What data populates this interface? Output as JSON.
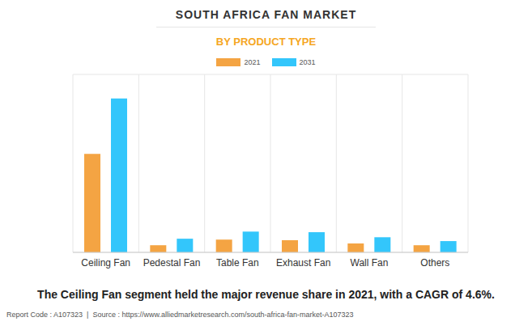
{
  "chart_data": {
    "type": "bar",
    "title": "SOUTH AFRICA FAN MARKET",
    "subtitle": "BY PRODUCT TYPE",
    "categories": [
      "Ceiling Fan",
      "Pedestal Fan",
      "Table Fan",
      "Exhaust Fan",
      "Wall Fan",
      "Others"
    ],
    "series": [
      {
        "name": "2021",
        "color": "#f4a443",
        "values": [
          3.32,
          0.24,
          0.43,
          0.41,
          0.3,
          0.24
        ]
      },
      {
        "name": "2031",
        "color": "#33c6fb",
        "values": [
          5.19,
          0.46,
          0.7,
          0.68,
          0.51,
          0.38
        ]
      }
    ],
    "ylim": [
      0,
      6
    ],
    "yticks": [
      0,
      1,
      2,
      3,
      4,
      5,
      6
    ],
    "grid": true,
    "tick_labels": "x",
    "legend": "top",
    "annotations": [
      "The Ceiling Fan segment held the major revenue share in 2021, with a CAGR of 4.6%.",
      "Report Code : A107323  |  Source : https://www.alliedmarketresearch.com/south-africa-fan-market-A107323"
    ]
  }
}
